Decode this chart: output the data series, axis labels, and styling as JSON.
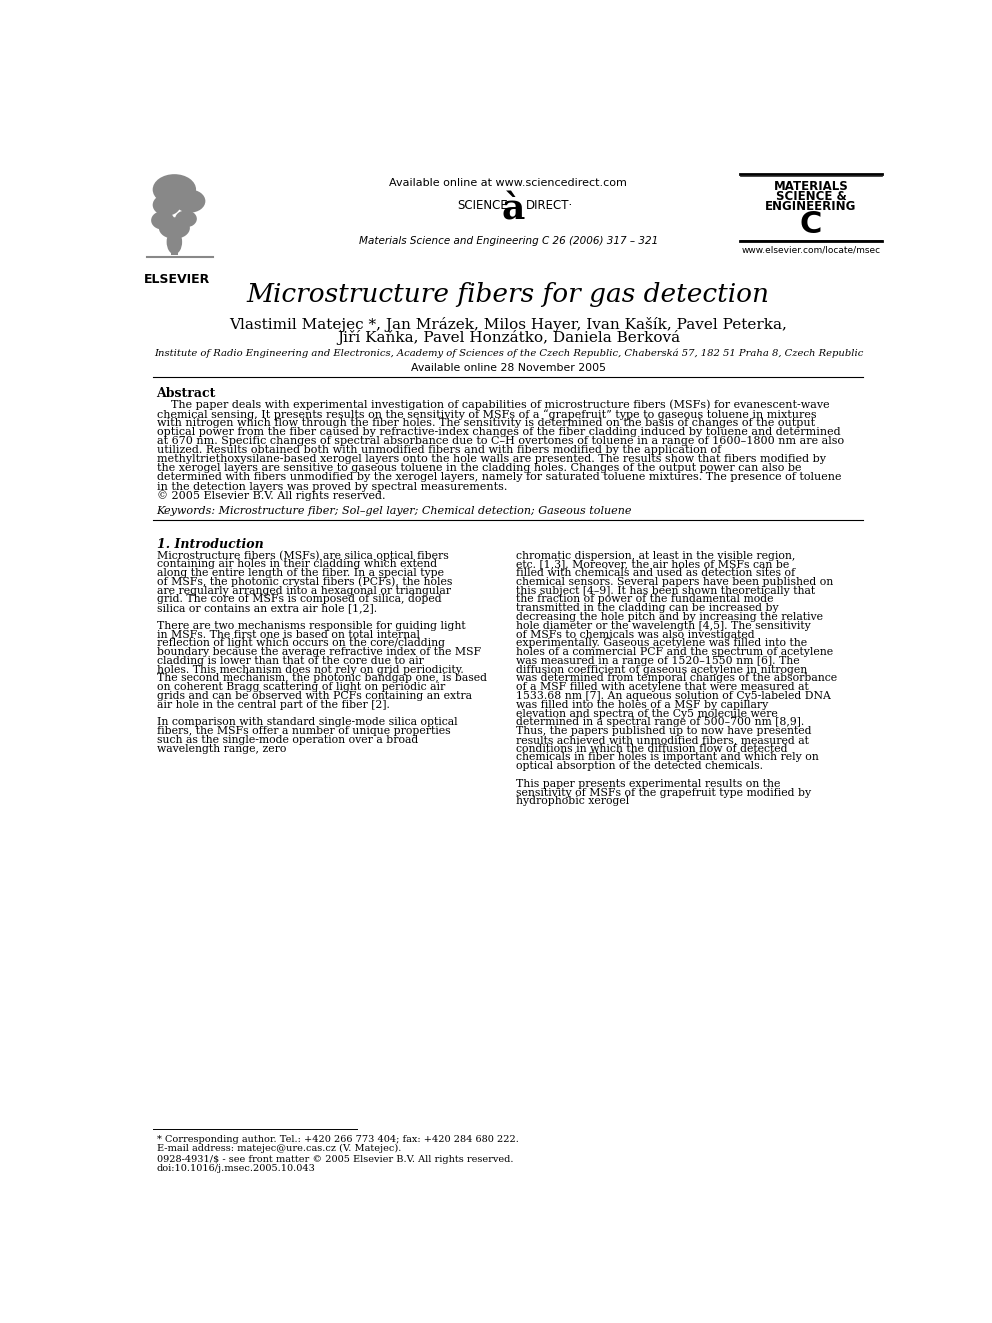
{
  "title": "Microstructure fibers for gas detection",
  "authors_line1": "Vlastimil Matejec *, Jan Mrázek, Milos Hayer, Ivan Kašík, Pavel Peterka,",
  "authors_line2": "Jiří Kaňka, Pavel Honzátko, Daniela Berková",
  "affiliation": "Institute of Radio Engineering and Electronics, Academy of Sciences of the Czech Republic, Chaberská 57, 182 51 Praha 8, Czech Republic",
  "available_online": "Available online 28 November 2005",
  "header_center": "Available online at www.sciencedirect.com",
  "header_journal": "Materials Science and Engineering C 26 (2006) 317 – 321",
  "journal_name_line1": "MATERIALS",
  "journal_name_line2": "SCIENCE &",
  "journal_name_line3": "ENGINEERING",
  "journal_name_line4": "C",
  "journal_url": "www.elsevier.com/locate/msec",
  "elsevier_text": "ELSEVIER",
  "abstract_title": "Abstract",
  "abstract_text": "The paper deals with experimental investigation of capabilities of microstructure fibers (MSFs) for evanescent-wave chemical sensing. It presents results on the sensitivity of MSFs of a “grapefruit” type to gaseous toluene in mixtures with nitrogen which flow through the fiber holes. The sensitivity is determined on the basis of changes of the output optical power from the fiber caused by refractive-index changes of the fiber cladding induced by toluene and determined at 670 nm. Specific changes of spectral absorbance due to C–H overtones of toluene in a range of 1600–1800 nm are also utilized. Results obtained both with unmodified fibers and with fibers modified by the application of methyltriethoxysilane-based xerogel layers onto the hole walls are presented. The results show that fibers modified by the xerogel layers are sensitive to gaseous toluene in the cladding holes. Changes of the output power can also be determined with fibers unmodified by the xerogel layers, namely for saturated toluene mixtures. The presence of toluene in the detection layers was proved by spectral measurements.\n© 2005 Elsevier B.V. All rights reserved.",
  "keywords": "Keywords: Microstructure fiber; Sol–gel layer; Chemical detection; Gaseous toluene",
  "section1_title": "1. Introduction",
  "section1_col1": "Microstructure fibers (MSFs) are silica optical fibers containing air holes in their cladding which extend along the entire length of the fiber. In a special type of MSFs, the photonic crystal fibers (PCFs), the holes are regularly arranged into a hexagonal or triangular grid. The core of MSFs is composed of silica, doped silica or contains an extra air hole [1,2].\n\nThere are two mechanisms responsible for guiding light in MSFs. The first one is based on total internal reflection of light which occurs on the core/cladding boundary because the average refractive index of the MSF cladding is lower than that of the core due to air holes. This mechanism does not rely on grid periodicity. The second mechanism, the photonic bandgap one, is based on coherent Bragg scattering of light on periodic air grids and can be observed with PCFs containing an extra air hole in the central part of the fiber [2].\n\nIn comparison with standard single-mode silica optical fibers, the MSFs offer a number of unique properties such as the single-mode operation over a broad wavelength range, zero",
  "section1_col2": "chromatic dispersion, at least in the visible region, etc. [1,3]. Moreover, the air holes of MSFs can be filled with chemicals and used as detection sites of chemical sensors. Several papers have been published on this subject [4–9]. It has been shown theoretically that the fraction of power of the fundamental mode transmitted in the cladding can be increased by decreasing the hole pitch and by increasing the relative hole diameter or the wavelength [4,5]. The sensitivity of MSFs to chemicals was also investigated experimentally. Gaseous acetylene was filled into the holes of a commercial PCF and the spectrum of acetylene was measured in a range of 1520–1550 nm [6]. The diffusion coefficient of gaseous acetylene in nitrogen was determined from temporal changes of the absorbance of a MSF filled with acetylene that were measured at 1533.68 nm [7]. An aqueous solution of Cy5-labeled DNA was filled into the holes of a MSF by capillary elevation and spectra of the Cy5 molecule were determined in a spectral range of 500–700 nm [8,9]. Thus, the papers published up to now have presented results achieved with unmodified fibers, measured at conditions in which the diffusion flow of detected chemicals in fiber holes is important and which rely on optical absorption of the detected chemicals.\n\nThis paper presents experimental results on the sensitivity of MSFs of the grapefruit type modified by hydrophobic xerogel",
  "footer_line1": "* Corresponding author. Tel.: +420 266 773 404; fax: +420 284 680 222.",
  "footer_line2": "E-mail address: matejec@ure.cas.cz (V. Matejec).",
  "footer_line3": "0928-4931/$ - see front matter © 2005 Elsevier B.V. All rights reserved.",
  "footer_line4": "doi:10.1016/j.msec.2005.10.043",
  "bg_color": "#ffffff",
  "text_color": "#000000"
}
